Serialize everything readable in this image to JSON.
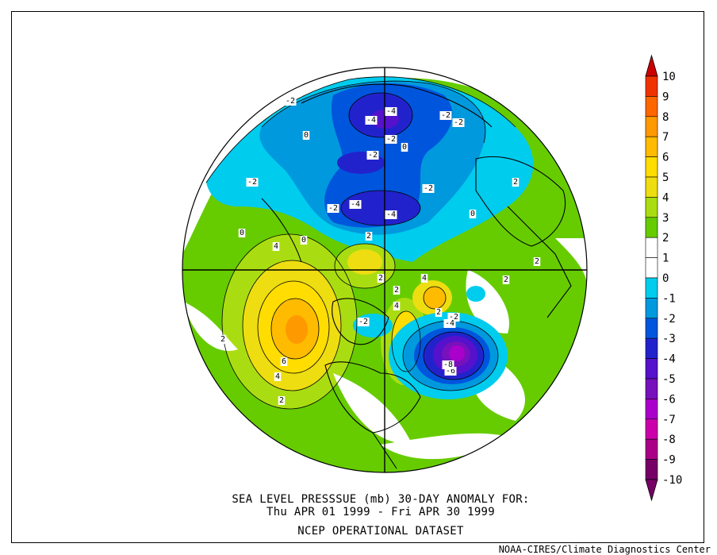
{
  "title_line1": "SEA LEVEL PRESSSUE (mb)   30-DAY ANOMALY FOR:",
  "title_line2": "Thu APR 01 1999 - Fri APR 30 1999",
  "dataset": "NCEP OPERATIONAL DATASET",
  "credit": "NOAA-CIRES/Climate Diagnostics Center",
  "colorbar": {
    "levels": [
      {
        "label": "10",
        "color": "#cc0000"
      },
      {
        "label": "9",
        "color": "#ee3300"
      },
      {
        "label": "8",
        "color": "#ff6600"
      },
      {
        "label": "7",
        "color": "#ff9900"
      },
      {
        "label": "6",
        "color": "#ffbb00"
      },
      {
        "label": "5",
        "color": "#ffdd00"
      },
      {
        "label": "4",
        "color": "#eedd11"
      },
      {
        "label": "3",
        "color": "#aadd11"
      },
      {
        "label": "2",
        "color": "#66cc00"
      },
      {
        "label": "1",
        "color": "#ffffff"
      },
      {
        "label": "0",
        "color": "#ffffff"
      },
      {
        "label": "-1",
        "color": "#00ccee"
      },
      {
        "label": "-2",
        "color": "#0099dd"
      },
      {
        "label": "-3",
        "color": "#0055dd"
      },
      {
        "label": "-4",
        "color": "#2222cc"
      },
      {
        "label": "-5",
        "color": "#5511cc"
      },
      {
        "label": "-6",
        "color": "#7711bb"
      },
      {
        "label": "-7",
        "color": "#aa00cc"
      },
      {
        "label": "-8",
        "color": "#cc00aa"
      },
      {
        "label": "-9",
        "color": "#aa0088"
      },
      {
        "label": "-10",
        "color": "#770066"
      }
    ]
  },
  "contour_labels": [
    {
      "text": "-2"
    },
    {
      "text": "-4"
    },
    {
      "text": "-4"
    },
    {
      "text": "-2"
    },
    {
      "text": "-2"
    },
    {
      "text": "0"
    },
    {
      "text": "-2"
    },
    {
      "text": "0"
    },
    {
      "text": "-2"
    },
    {
      "text": "-2"
    },
    {
      "text": "-2"
    },
    {
      "text": "-4"
    },
    {
      "text": "-4"
    },
    {
      "text": "-2"
    },
    {
      "text": "2"
    },
    {
      "text": "0"
    },
    {
      "text": "4"
    },
    {
      "text": "0"
    },
    {
      "text": "2"
    },
    {
      "text": "2"
    },
    {
      "text": "2"
    },
    {
      "text": "4"
    },
    {
      "text": "4"
    },
    {
      "text": "2"
    },
    {
      "text": "-2"
    },
    {
      "text": "-4"
    },
    {
      "text": "-6"
    },
    {
      "text": "-8"
    },
    {
      "text": "6"
    },
    {
      "text": "4"
    },
    {
      "text": "2"
    },
    {
      "text": "2"
    },
    {
      "text": "0"
    },
    {
      "text": "2"
    },
    {
      "text": "2"
    },
    {
      "text": "-2"
    }
  ]
}
